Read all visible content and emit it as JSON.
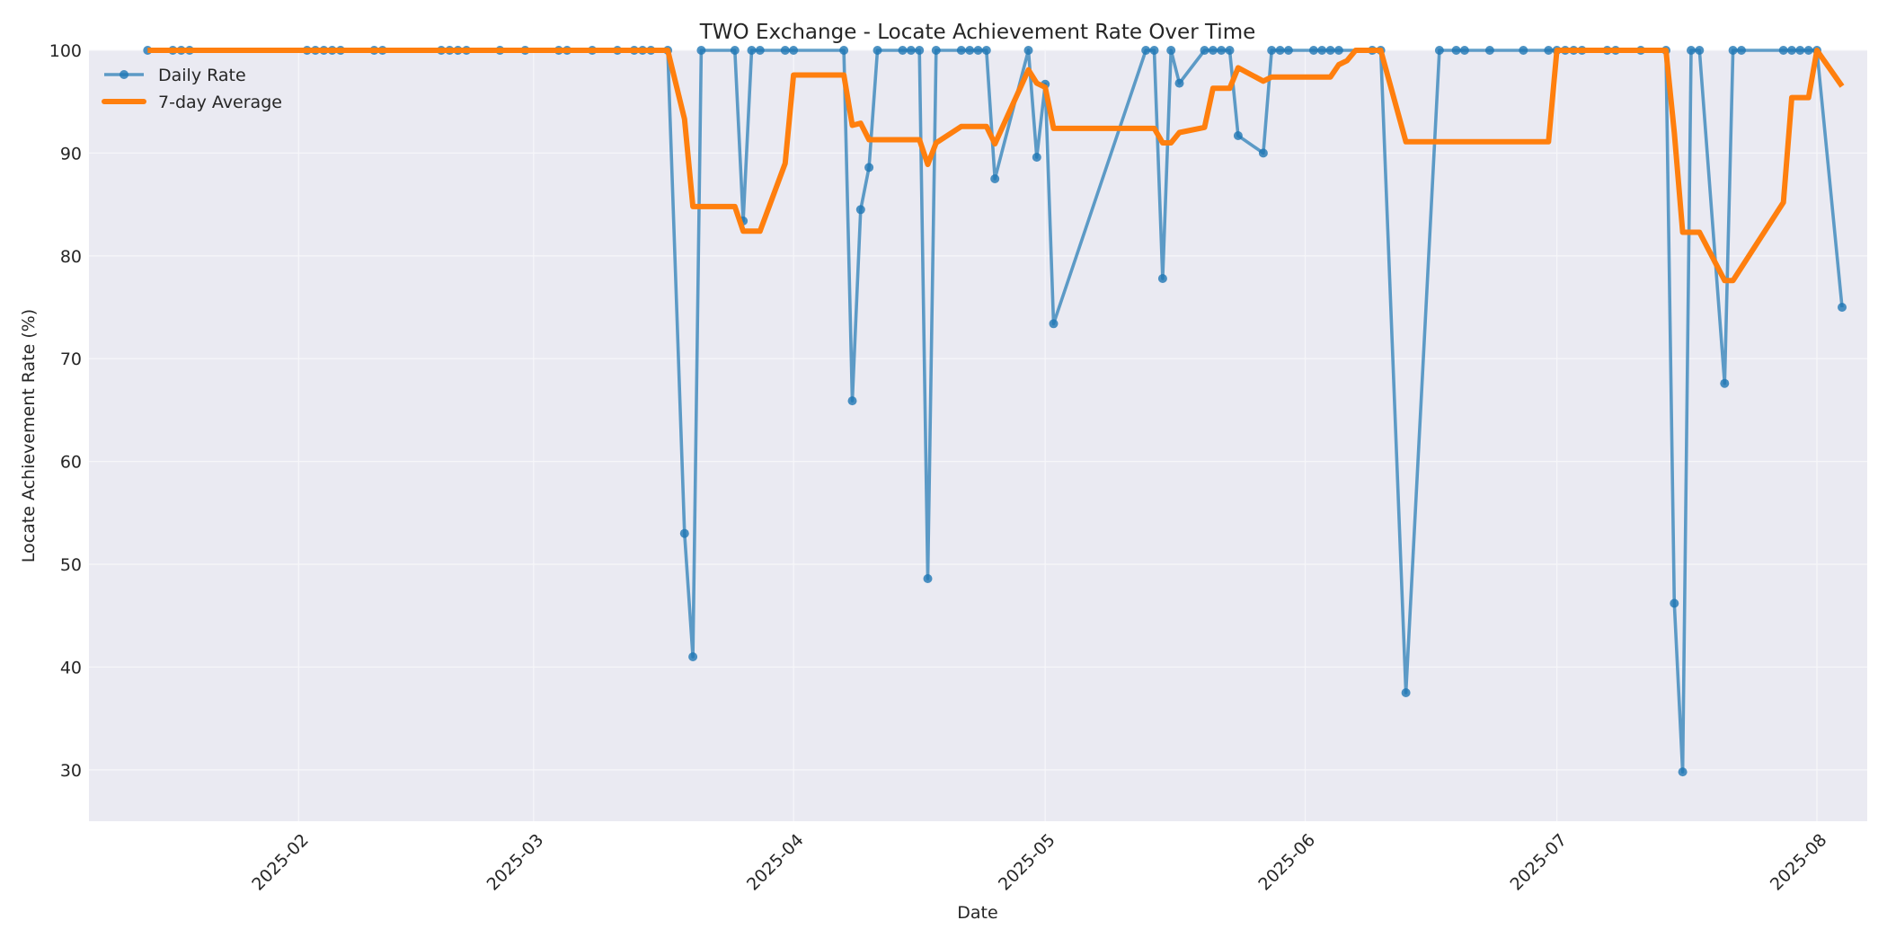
{
  "chart_data": {
    "type": "line",
    "title": "TWO Exchange - Locate Achievement Rate Over Time",
    "xlabel": "Date",
    "ylabel": "Locate Achievement Rate (%)",
    "ylim": [
      25,
      100
    ],
    "xlim": [
      "2025-01-07",
      "2025-08-07"
    ],
    "yticks": [
      30,
      40,
      50,
      60,
      70,
      80,
      90,
      100
    ],
    "xticks": [
      "2025-02",
      "2025-03",
      "2025-04",
      "2025-05",
      "2025-06",
      "2025-07",
      "2025-08"
    ],
    "grid": true,
    "legend_position": "upper left",
    "colors": {
      "daily": "#1f77b4",
      "average": "#ff7f0e",
      "plot_bg": "#eaeaf2",
      "grid": "#f5f5f8"
    },
    "series": [
      {
        "name": "Daily Rate",
        "marker": "circle",
        "points": [
          [
            "2025-01-14",
            100
          ],
          [
            "2025-01-17",
            100
          ],
          [
            "2025-01-18",
            100
          ],
          [
            "2025-01-19",
            100
          ],
          [
            "2025-02-02",
            100
          ],
          [
            "2025-02-03",
            100
          ],
          [
            "2025-02-04",
            100
          ],
          [
            "2025-02-05",
            100
          ],
          [
            "2025-02-06",
            100
          ],
          [
            "2025-02-10",
            100
          ],
          [
            "2025-02-11",
            100
          ],
          [
            "2025-02-18",
            100
          ],
          [
            "2025-02-19",
            100
          ],
          [
            "2025-02-20",
            100
          ],
          [
            "2025-02-21",
            100
          ],
          [
            "2025-02-25",
            100
          ],
          [
            "2025-02-28",
            100
          ],
          [
            "2025-03-04",
            100
          ],
          [
            "2025-03-05",
            100
          ],
          [
            "2025-03-08",
            100
          ],
          [
            "2025-03-11",
            100
          ],
          [
            "2025-03-13",
            100
          ],
          [
            "2025-03-14",
            100
          ],
          [
            "2025-03-15",
            100
          ],
          [
            "2025-03-17",
            100
          ],
          [
            "2025-03-19",
            53.0
          ],
          [
            "2025-03-20",
            41.0
          ],
          [
            "2025-03-21",
            100
          ],
          [
            "2025-03-25",
            100
          ],
          [
            "2025-03-26",
            83.4
          ],
          [
            "2025-03-27",
            100
          ],
          [
            "2025-03-28",
            100
          ],
          [
            "2025-03-31",
            100
          ],
          [
            "2025-04-01",
            100
          ],
          [
            "2025-04-07",
            100
          ],
          [
            "2025-04-08",
            65.9
          ],
          [
            "2025-04-09",
            84.5
          ],
          [
            "2025-04-10",
            88.6
          ],
          [
            "2025-04-11",
            100
          ],
          [
            "2025-04-14",
            100
          ],
          [
            "2025-04-15",
            100
          ],
          [
            "2025-04-16",
            100
          ],
          [
            "2025-04-17",
            48.6
          ],
          [
            "2025-04-18",
            100
          ],
          [
            "2025-04-21",
            100
          ],
          [
            "2025-04-22",
            100
          ],
          [
            "2025-04-23",
            100
          ],
          [
            "2025-04-24",
            100
          ],
          [
            "2025-04-25",
            87.5
          ],
          [
            "2025-04-29",
            100
          ],
          [
            "2025-04-30",
            89.6
          ],
          [
            "2025-05-01",
            96.7
          ],
          [
            "2025-05-02",
            73.4
          ],
          [
            "2025-05-13",
            100
          ],
          [
            "2025-05-14",
            100
          ],
          [
            "2025-05-15",
            77.8
          ],
          [
            "2025-05-16",
            100
          ],
          [
            "2025-05-17",
            96.8
          ],
          [
            "2025-05-20",
            100
          ],
          [
            "2025-05-21",
            100
          ],
          [
            "2025-05-22",
            100
          ],
          [
            "2025-05-23",
            100
          ],
          [
            "2025-05-24",
            91.7
          ],
          [
            "2025-05-27",
            90.0
          ],
          [
            "2025-05-28",
            100
          ],
          [
            "2025-05-29",
            100
          ],
          [
            "2025-05-30",
            100
          ],
          [
            "2025-06-02",
            100
          ],
          [
            "2025-06-03",
            100
          ],
          [
            "2025-06-04",
            100
          ],
          [
            "2025-06-05",
            100
          ],
          [
            "2025-06-09",
            100
          ],
          [
            "2025-06-10",
            100
          ],
          [
            "2025-06-13",
            37.5
          ],
          [
            "2025-06-17",
            100
          ],
          [
            "2025-06-19",
            100
          ],
          [
            "2025-06-20",
            100
          ],
          [
            "2025-06-23",
            100
          ],
          [
            "2025-06-27",
            100
          ],
          [
            "2025-06-30",
            100
          ],
          [
            "2025-07-01",
            100
          ],
          [
            "2025-07-02",
            100
          ],
          [
            "2025-07-03",
            100
          ],
          [
            "2025-07-04",
            100
          ],
          [
            "2025-07-07",
            100
          ],
          [
            "2025-07-08",
            100
          ],
          [
            "2025-07-11",
            100
          ],
          [
            "2025-07-14",
            100
          ],
          [
            "2025-07-15",
            46.2
          ],
          [
            "2025-07-16",
            29.8
          ],
          [
            "2025-07-17",
            100
          ],
          [
            "2025-07-18",
            100
          ],
          [
            "2025-07-21",
            67.6
          ],
          [
            "2025-07-22",
            100
          ],
          [
            "2025-07-23",
            100
          ],
          [
            "2025-07-28",
            100
          ],
          [
            "2025-07-29",
            100
          ],
          [
            "2025-07-30",
            100
          ],
          [
            "2025-07-31",
            100
          ],
          [
            "2025-08-01",
            100
          ],
          [
            "2025-08-04",
            75.0
          ]
        ]
      },
      {
        "name": "7-day Average",
        "marker": "none",
        "points": [
          [
            "2025-01-14",
            100
          ],
          [
            "2025-03-17",
            100
          ],
          [
            "2025-03-19",
            93.3
          ],
          [
            "2025-03-20",
            84.8
          ],
          [
            "2025-03-25",
            84.8
          ],
          [
            "2025-03-26",
            82.4
          ],
          [
            "2025-03-28",
            82.4
          ],
          [
            "2025-03-31",
            89.0
          ],
          [
            "2025-04-01",
            97.6
          ],
          [
            "2025-04-07",
            97.6
          ],
          [
            "2025-04-08",
            92.7
          ],
          [
            "2025-04-09",
            92.9
          ],
          [
            "2025-04-10",
            91.3
          ],
          [
            "2025-04-16",
            91.3
          ],
          [
            "2025-04-17",
            88.9
          ],
          [
            "2025-04-18",
            91.0
          ],
          [
            "2025-04-21",
            92.6
          ],
          [
            "2025-04-24",
            92.6
          ],
          [
            "2025-04-25",
            90.9
          ],
          [
            "2025-04-29",
            98.1
          ],
          [
            "2025-04-30",
            96.8
          ],
          [
            "2025-05-01",
            96.4
          ],
          [
            "2025-05-02",
            92.4
          ],
          [
            "2025-05-14",
            92.4
          ],
          [
            "2025-05-15",
            91.0
          ],
          [
            "2025-05-16",
            91.0
          ],
          [
            "2025-05-17",
            92.0
          ],
          [
            "2025-05-20",
            92.5
          ],
          [
            "2025-05-21",
            96.3
          ],
          [
            "2025-05-23",
            96.3
          ],
          [
            "2025-05-24",
            98.3
          ],
          [
            "2025-05-27",
            97.0
          ],
          [
            "2025-05-28",
            97.4
          ],
          [
            "2025-06-04",
            97.4
          ],
          [
            "2025-06-05",
            98.6
          ],
          [
            "2025-06-06",
            99.0
          ],
          [
            "2025-06-07",
            100
          ],
          [
            "2025-06-10",
            100
          ],
          [
            "2025-06-13",
            91.1
          ],
          [
            "2025-06-30",
            91.1
          ],
          [
            "2025-07-01",
            100
          ],
          [
            "2025-07-14",
            100
          ],
          [
            "2025-07-15",
            92.0
          ],
          [
            "2025-07-16",
            82.3
          ],
          [
            "2025-07-18",
            82.3
          ],
          [
            "2025-07-21",
            77.6
          ],
          [
            "2025-07-22",
            77.6
          ],
          [
            "2025-07-28",
            85.2
          ],
          [
            "2025-07-29",
            95.4
          ],
          [
            "2025-07-31",
            95.4
          ],
          [
            "2025-08-01",
            100
          ],
          [
            "2025-08-04",
            96.5
          ]
        ]
      }
    ]
  },
  "legend": {
    "items": [
      {
        "label": "Daily Rate"
      },
      {
        "label": "7-day Average"
      }
    ]
  }
}
